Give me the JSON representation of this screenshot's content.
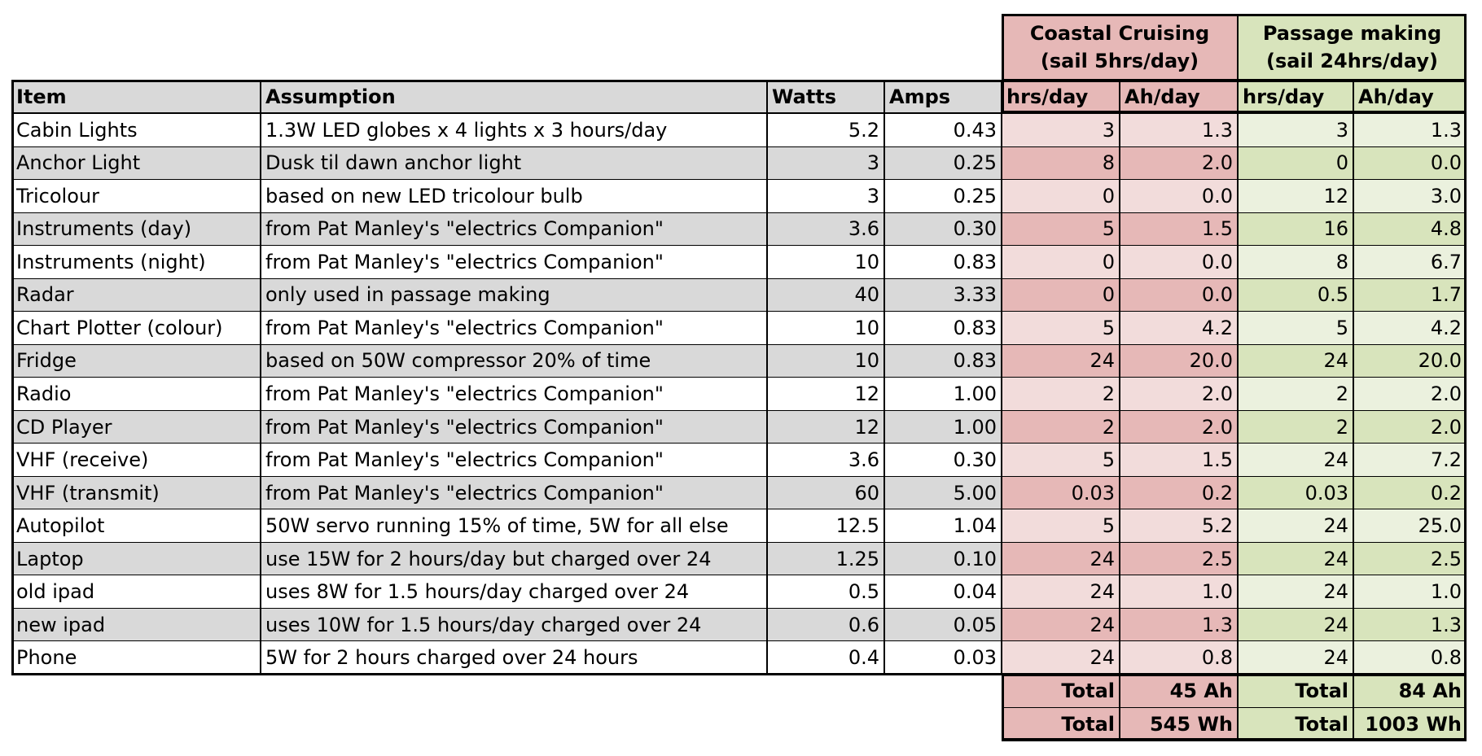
{
  "column_groups": [
    {
      "title": "Coastal Cruising",
      "subtitle": "(sail 5hrs/day)"
    },
    {
      "title": "Passage making",
      "subtitle": "(sail 24hrs/day)"
    }
  ],
  "header": [
    "Item",
    "Assumption",
    "Watts",
    "Amps",
    "hrs/day",
    "Ah/day",
    "hrs/day",
    "Ah/day"
  ],
  "rows": [
    [
      "Cabin Lights",
      "1.3W LED globes x 4 lights x 3 hours/day",
      "5.2",
      "0.43",
      "3",
      "1.3",
      "3",
      "1.3"
    ],
    [
      "Anchor Light",
      "Dusk til dawn anchor light",
      "3",
      "0.25",
      "8",
      "2.0",
      "0",
      "0.0"
    ],
    [
      "Tricolour",
      "based on new LED tricolour bulb",
      "3",
      "0.25",
      "0",
      "0.0",
      "12",
      "3.0"
    ],
    [
      "Instruments (day)",
      "from Pat Manley's \"electrics Companion\"",
      "3.6",
      "0.30",
      "5",
      "1.5",
      "16",
      "4.8"
    ],
    [
      "Instruments (night)",
      "from Pat Manley's \"electrics Companion\"",
      "10",
      "0.83",
      "0",
      "0.0",
      "8",
      "6.7"
    ],
    [
      "Radar",
      "only used in passage making",
      "40",
      "3.33",
      "0",
      "0.0",
      "0.5",
      "1.7"
    ],
    [
      "Chart Plotter (colour)",
      "from Pat Manley's \"electrics Companion\"",
      "10",
      "0.83",
      "5",
      "4.2",
      "5",
      "4.2"
    ],
    [
      "Fridge",
      "based on 50W compressor 20% of time",
      "10",
      "0.83",
      "24",
      "20.0",
      "24",
      "20.0"
    ],
    [
      "Radio",
      "from Pat Manley's \"electrics Companion\"",
      "12",
      "1.00",
      "2",
      "2.0",
      "2",
      "2.0"
    ],
    [
      "CD Player",
      "from Pat Manley's \"electrics Companion\"",
      "12",
      "1.00",
      "2",
      "2.0",
      "2",
      "2.0"
    ],
    [
      "VHF (receive)",
      "from Pat Manley's \"electrics Companion\"",
      "3.6",
      "0.30",
      "5",
      "1.5",
      "24",
      "7.2"
    ],
    [
      "VHF (transmit)",
      "from Pat Manley's \"electrics Companion\"",
      "60",
      "5.00",
      "0.03",
      "0.2",
      "0.03",
      "0.2"
    ],
    [
      "Autopilot",
      "50W servo running 15% of time, 5W for all else",
      "12.5",
      "1.04",
      "5",
      "5.2",
      "24",
      "25.0"
    ],
    [
      "Laptop",
      "use 15W for 2 hours/day but charged over 24",
      "1.25",
      "0.10",
      "24",
      "2.5",
      "24",
      "2.5"
    ],
    [
      "old ipad",
      "uses 8W for 1.5 hours/day charged over 24",
      "0.5",
      "0.04",
      "24",
      "1.0",
      "24",
      "1.0"
    ],
    [
      "new ipad",
      "uses 10W for 1.5 hours/day charged over 24",
      "0.6",
      "0.05",
      "24",
      "1.3",
      "24",
      "1.3"
    ],
    [
      "Phone",
      "5W for 2 hours charged over 24 hours",
      "0.4",
      "0.03",
      "24",
      "0.8",
      "24",
      "0.8"
    ]
  ],
  "totals": [
    [
      "Total",
      "45 Ah",
      "Total",
      "84 Ah"
    ],
    [
      "Total",
      "545 Wh",
      "Total",
      "1003 Wh"
    ]
  ]
}
